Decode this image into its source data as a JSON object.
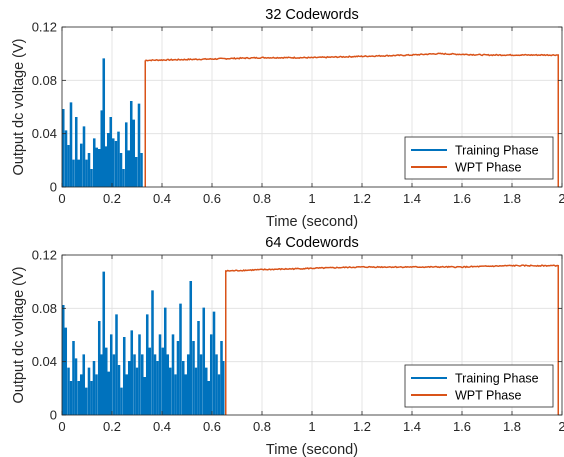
{
  "chart_data": [
    {
      "type": "line",
      "title": "32 Codewords",
      "xlabel": "Time (second)",
      "ylabel": "Output dc voltage (V)",
      "xlim": [
        0,
        2
      ],
      "ylim": [
        0,
        0.12
      ],
      "xticks": [
        "0",
        "0.2",
        "0.4",
        "0.6",
        "0.8",
        "1",
        "1.2",
        "1.4",
        "1.6",
        "1.8",
        "2"
      ],
      "yticks": [
        "0",
        "0.04",
        "0.08",
        "0.12"
      ],
      "grid": true,
      "legend_position": "bottom-right",
      "legend": [
        "Training Phase",
        "WPT Phase"
      ],
      "series": [
        {
          "name": "Training Phase",
          "color": "#0072BD",
          "style": "pulses",
          "pulse_width": 0.005,
          "pulses": [
            [
              0.005,
              0.058
            ],
            [
              0.016,
              0.042
            ],
            [
              0.026,
              0.031
            ],
            [
              0.036,
              0.063
            ],
            [
              0.046,
              0.02
            ],
            [
              0.057,
              0.052
            ],
            [
              0.067,
              0.02
            ],
            [
              0.077,
              0.032
            ],
            [
              0.088,
              0.045
            ],
            [
              0.098,
              0.02
            ],
            [
              0.108,
              0.025
            ],
            [
              0.118,
              0.013
            ],
            [
              0.129,
              0.036
            ],
            [
              0.139,
              0.029
            ],
            [
              0.149,
              0.028
            ],
            [
              0.159,
              0.057
            ],
            [
              0.167,
              0.096
            ],
            [
              0.175,
              0.03
            ],
            [
              0.185,
              0.04
            ],
            [
              0.195,
              0.052
            ],
            [
              0.205,
              0.036
            ],
            [
              0.216,
              0.034
            ],
            [
              0.226,
              0.041
            ],
            [
              0.236,
              0.025
            ],
            [
              0.246,
              0.013
            ],
            [
              0.257,
              0.048
            ],
            [
              0.267,
              0.027
            ],
            [
              0.277,
              0.064
            ],
            [
              0.287,
              0.05
            ],
            [
              0.297,
              0.022
            ],
            [
              0.308,
              0.062
            ],
            [
              0.318,
              0.025
            ]
          ]
        },
        {
          "name": "WPT Phase",
          "color": "#D95319",
          "style": "step",
          "start": 0.333,
          "end": 1.985,
          "points": [
            [
              0.333,
              0.095
            ],
            [
              0.6,
              0.096
            ],
            [
              0.8,
              0.097
            ],
            [
              1.0,
              0.097
            ],
            [
              1.2,
              0.098
            ],
            [
              1.4,
              0.099
            ],
            [
              1.5,
              0.1
            ],
            [
              1.7,
              0.099
            ],
            [
              1.985,
              0.099
            ]
          ]
        }
      ]
    },
    {
      "type": "line",
      "title": "64 Codewords",
      "xlabel": "Time (second)",
      "ylabel": "Output dc voltage (V)",
      "xlim": [
        0,
        2
      ],
      "ylim": [
        0,
        0.12
      ],
      "xticks": [
        "0",
        "0.2",
        "0.4",
        "0.6",
        "0.8",
        "1",
        "1.2",
        "1.4",
        "1.6",
        "1.8",
        "2"
      ],
      "yticks": [
        "0",
        "0.04",
        "0.08",
        "0.12"
      ],
      "grid": true,
      "legend_position": "bottom-right",
      "legend": [
        "Training Phase",
        "WPT Phase"
      ],
      "series": [
        {
          "name": "Training Phase",
          "color": "#0072BD",
          "style": "pulses",
          "pulse_width": 0.005,
          "pulses": [
            [
              0.005,
              0.082
            ],
            [
              0.015,
              0.065
            ],
            [
              0.026,
              0.035
            ],
            [
              0.036,
              0.025
            ],
            [
              0.046,
              0.055
            ],
            [
              0.056,
              0.042
            ],
            [
              0.067,
              0.025
            ],
            [
              0.077,
              0.03
            ],
            [
              0.087,
              0.045
            ],
            [
              0.097,
              0.02
            ],
            [
              0.108,
              0.035
            ],
            [
              0.118,
              0.025
            ],
            [
              0.128,
              0.04
            ],
            [
              0.138,
              0.03
            ],
            [
              0.149,
              0.07
            ],
            [
              0.159,
              0.045
            ],
            [
              0.167,
              0.107
            ],
            [
              0.177,
              0.05
            ],
            [
              0.187,
              0.032
            ],
            [
              0.197,
              0.06
            ],
            [
              0.208,
              0.045
            ],
            [
              0.218,
              0.075
            ],
            [
              0.228,
              0.037
            ],
            [
              0.238,
              0.02
            ],
            [
              0.249,
              0.058
            ],
            [
              0.259,
              0.03
            ],
            [
              0.269,
              0.04
            ],
            [
              0.279,
              0.063
            ],
            [
              0.29,
              0.045
            ],
            [
              0.3,
              0.035
            ],
            [
              0.31,
              0.06
            ],
            [
              0.321,
              0.045
            ],
            [
              0.331,
              0.028
            ],
            [
              0.341,
              0.075
            ],
            [
              0.351,
              0.05
            ],
            [
              0.362,
              0.093
            ],
            [
              0.372,
              0.045
            ],
            [
              0.382,
              0.04
            ],
            [
              0.392,
              0.06
            ],
            [
              0.403,
              0.05
            ],
            [
              0.413,
              0.08
            ],
            [
              0.423,
              0.045
            ],
            [
              0.433,
              0.035
            ],
            [
              0.444,
              0.06
            ],
            [
              0.454,
              0.03
            ],
            [
              0.464,
              0.055
            ],
            [
              0.474,
              0.083
            ],
            [
              0.485,
              0.04
            ],
            [
              0.495,
              0.03
            ],
            [
              0.505,
              0.045
            ],
            [
              0.515,
              0.1
            ],
            [
              0.526,
              0.055
            ],
            [
              0.536,
              0.035
            ],
            [
              0.546,
              0.07
            ],
            [
              0.556,
              0.045
            ],
            [
              0.567,
              0.08
            ],
            [
              0.577,
              0.035
            ],
            [
              0.587,
              0.025
            ],
            [
              0.597,
              0.06
            ],
            [
              0.608,
              0.077
            ],
            [
              0.618,
              0.045
            ],
            [
              0.628,
              0.03
            ],
            [
              0.638,
              0.055
            ],
            [
              0.645,
              0.04
            ]
          ]
        },
        {
          "name": "WPT Phase",
          "color": "#D95319",
          "style": "step",
          "start": 0.655,
          "end": 1.985,
          "points": [
            [
              0.655,
              0.108
            ],
            [
              0.8,
              0.109
            ],
            [
              1.0,
              0.11
            ],
            [
              1.2,
              0.111
            ],
            [
              1.4,
              0.111
            ],
            [
              1.6,
              0.111
            ],
            [
              1.8,
              0.112
            ],
            [
              1.985,
              0.112
            ]
          ]
        }
      ]
    }
  ]
}
